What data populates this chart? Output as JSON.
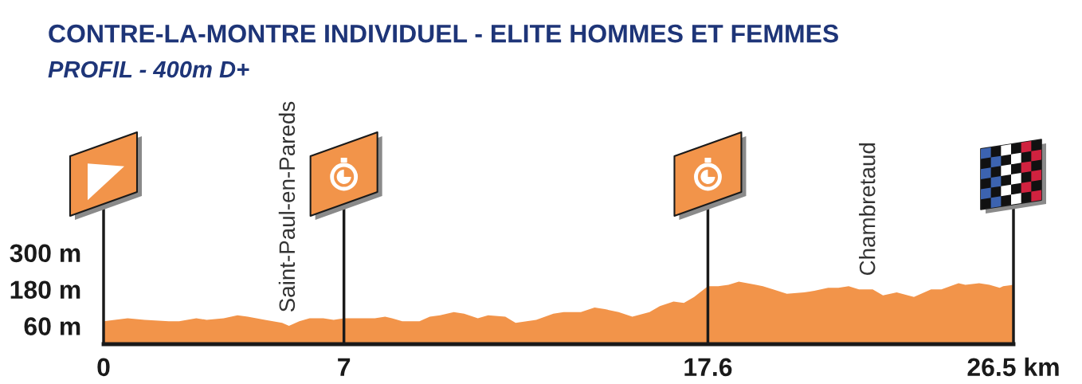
{
  "chart_data": {
    "type": "area",
    "title": "CONTRE-LA-MONTRE INDIVIDUEL - ELITE HOMMES ET FEMMES",
    "subtitle": "PROFIL - 400m D+",
    "x": [
      0,
      0.7,
      1.2,
      1.9,
      2.2,
      2.7,
      3.0,
      3.5,
      3.9,
      4.2,
      4.7,
      5.2,
      5.4,
      5.7,
      6.0,
      6.4,
      6.7,
      7.0,
      7.6,
      7.9,
      8.2,
      8.4,
      8.7,
      9.2,
      9.5,
      9.8,
      10.2,
      10.5,
      10.9,
      11.2,
      11.7,
      12.0,
      12.6,
      13.1,
      13.4,
      13.9,
      14.3,
      14.6,
      15.0,
      15.4,
      15.9,
      16.2,
      16.6,
      16.9,
      17.2,
      17.6,
      17.9,
      18.2,
      18.5,
      19.0,
      19.2,
      19.5,
      19.9,
      20.4,
      20.7,
      21.1,
      21.4,
      21.7,
      22.0,
      22.4,
      22.7,
      23.1,
      23.6,
      24.1,
      24.4,
      24.9,
      25.1,
      25.5,
      25.8,
      26.1,
      26.2,
      26.5
    ],
    "values": [
      75,
      85,
      80,
      75,
      75,
      85,
      80,
      85,
      95,
      90,
      80,
      70,
      60,
      75,
      85,
      85,
      80,
      85,
      85,
      85,
      90,
      85,
      75,
      75,
      90,
      95,
      105,
      100,
      85,
      95,
      90,
      70,
      80,
      100,
      105,
      105,
      120,
      115,
      105,
      90,
      105,
      125,
      140,
      135,
      155,
      190,
      190,
      195,
      205,
      195,
      190,
      180,
      165,
      170,
      175,
      185,
      185,
      190,
      180,
      180,
      160,
      170,
      155,
      180,
      180,
      200,
      195,
      200,
      195,
      185,
      190,
      195
    ],
    "color": "#f2944a",
    "xlim": [
      0,
      26.5
    ],
    "ylim": [
      0,
      460
    ],
    "xticks": [
      0,
      7,
      17.6,
      {
        "value": 26.5,
        "label": "26.5 km"
      }
    ],
    "yticks": [
      {
        "value": 60,
        "label": "60 m"
      },
      {
        "value": 180,
        "label": "180 m"
      },
      {
        "value": 300,
        "label": "300 m"
      }
    ],
    "ref_lines": [
      {
        "axis": "x",
        "value": 7,
        "color": "#1a1a1a"
      },
      {
        "axis": "x",
        "value": 17.6,
        "color": "#1a1a1a"
      }
    ],
    "annotations": [
      {
        "text": "Saint-Paul-en-Pareds",
        "x": 5.4,
        "y": 60
      },
      {
        "text": "Chambretaud",
        "x": 22.3,
        "y": 180
      }
    ]
  }
}
